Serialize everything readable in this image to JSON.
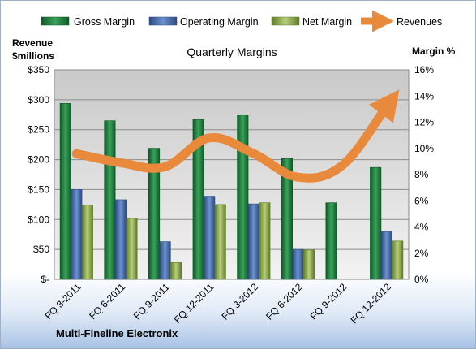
{
  "chart_data": {
    "type": "bar",
    "title": "Quarterly Margins",
    "categories": [
      "FQ 3-2011",
      "FQ 6-2011",
      "FQ 9-2011",
      "FQ 12-2011",
      "FQ 3-2012",
      "FQ 6-2012",
      "FQ 9-2012",
      "FQ 12-2012"
    ],
    "series": [
      {
        "name": "Gross Margin",
        "axis": "left",
        "color": "#2e8b45",
        "values": [
          294,
          265,
          219,
          267,
          275,
          202,
          128,
          187
        ]
      },
      {
        "name": "Operating Margin",
        "axis": "left",
        "color": "#4f74b3",
        "values": [
          150,
          133,
          63,
          139,
          126,
          50,
          0,
          80
        ]
      },
      {
        "name": "Net Margin",
        "axis": "left",
        "color": "#9ab55a",
        "values": [
          124,
          102,
          28,
          125,
          128,
          49,
          0,
          64
        ]
      },
      {
        "name": "Revenues",
        "type": "line",
        "axis": "right",
        "color": "#e8893c",
        "values": [
          9.6,
          8.9,
          8.6,
          10.8,
          9.6,
          7.8,
          8.7,
          13.2
        ]
      }
    ],
    "y_left": {
      "label_line1": "Revenue",
      "label_line2": "$millions",
      "ylim": [
        0,
        350
      ],
      "ticks": [
        "$-",
        "$50",
        "$100",
        "$150",
        "$200",
        "$250",
        "$300",
        "$350"
      ]
    },
    "y_right": {
      "label": "Margin %",
      "ylim": [
        0,
        16
      ],
      "ticks": [
        "0%",
        "2%",
        "4%",
        "6%",
        "8%",
        "10%",
        "12%",
        "14%",
        "16%"
      ]
    },
    "grid": true,
    "legend_position": "top"
  },
  "footer": {
    "company": "Multi-Fineline Electronix"
  }
}
